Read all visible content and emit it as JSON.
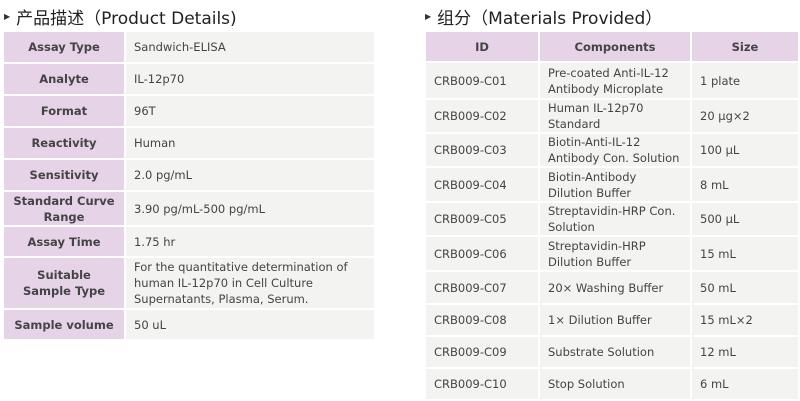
{
  "product_details": {
    "title": "产品描述（Product Details)",
    "rows": [
      {
        "label": "Assay Type",
        "value": "Sandwich-ELISA"
      },
      {
        "label": "Analyte",
        "value": "IL-12p70"
      },
      {
        "label": "Format",
        "value": "96T"
      },
      {
        "label": "Reactivity",
        "value": "Human"
      },
      {
        "label": "Sensitivity",
        "value": "2.0 pg/mL"
      },
      {
        "label": "Standard Curve Range",
        "value": "3.90 pg/mL-500 pg/mL"
      },
      {
        "label": "Assay Time",
        "value": "1.75 hr"
      },
      {
        "label": "Suitable Sample Type",
        "value": "For the quantitative determination of human IL-12p70 in Cell Culture Supernatants, Plasma, Serum."
      },
      {
        "label": "Sample volume",
        "value": "50 uL"
      }
    ]
  },
  "materials": {
    "title": "组分（Materials Provided）",
    "headers": [
      "ID",
      "Components",
      "Size"
    ],
    "rows": [
      {
        "id": "CRB009-C01",
        "component": "Pre-coated Anti-IL-12 Antibody Microplate",
        "size": "1 plate"
      },
      {
        "id": "CRB009-C02",
        "component": "Human IL-12p70 Standard",
        "size": "20 µg×2"
      },
      {
        "id": "CRB009-C03",
        "component": "Biotin-Anti-IL-12 Antibody Con. Solution",
        "size": "100 µL"
      },
      {
        "id": "CRB009-C04",
        "component": "Biotin-Antibody Dilution Buffer",
        "size": "8 mL"
      },
      {
        "id": "CRB009-C05",
        "component": "Streptavidin-HRP Con. Solution",
        "size": "500 µL"
      },
      {
        "id": "CRB009-C06",
        "component": "Streptavidin-HRP Dilution Buffer",
        "size": "15 mL"
      },
      {
        "id": "CRB009-C07",
        "component": "20× Washing Buffer",
        "size": "50 mL"
      },
      {
        "id": "CRB009-C08",
        "component": "1× Dilution Buffer",
        "size": "15 mL×2"
      },
      {
        "id": "CRB009-C09",
        "component": "Substrate Solution",
        "size": "12 mL"
      },
      {
        "id": "CRB009-C10",
        "component": "Stop Solution",
        "size": "6 mL"
      }
    ]
  },
  "colors": {
    "label_bg": "#e6d3e7",
    "cell_bg": "#f3f3f2"
  }
}
